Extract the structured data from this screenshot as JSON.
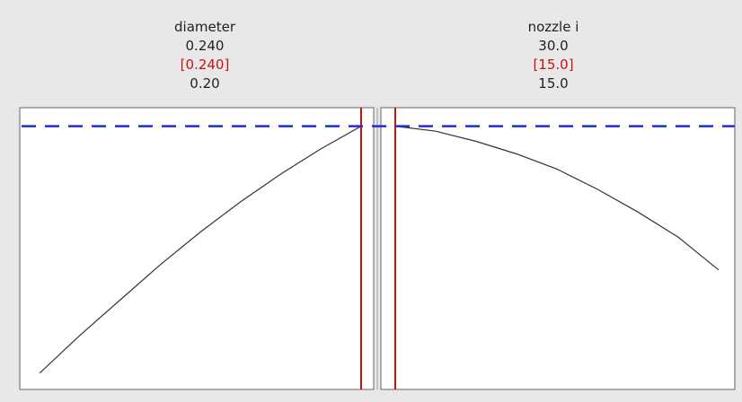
{
  "chart_data": [
    {
      "type": "line",
      "factor": "diameter",
      "high_label": "0.240",
      "current_label": "[0.240]",
      "low_label": "0.20",
      "range": [
        0.2,
        0.24
      ],
      "current": 0.24,
      "x": [
        0.2,
        0.205,
        0.21,
        0.215,
        0.22,
        0.225,
        0.23,
        0.235,
        0.24
      ],
      "y": [
        0.0,
        0.15,
        0.29,
        0.43,
        0.56,
        0.68,
        0.79,
        0.89,
        0.98
      ]
    },
    {
      "type": "line",
      "factor": "nozzle i",
      "high_label": "30.0",
      "current_label": "[15.0]",
      "low_label": "15.0",
      "range": [
        15.0,
        30.0
      ],
      "current": 15.0,
      "x": [
        15.0,
        16.875,
        18.75,
        20.625,
        22.5,
        24.375,
        26.25,
        28.125,
        30.0
      ],
      "y": [
        0.98,
        0.96,
        0.92,
        0.87,
        0.81,
        0.73,
        0.64,
        0.54,
        0.41
      ]
    }
  ],
  "target_y": 0.98,
  "colors": {
    "curve": "#333333",
    "current_line": "#cc1111",
    "target_line": "#1f2fd0",
    "panel_bg": "#ffffff",
    "page_bg": "#e8e8e8"
  }
}
